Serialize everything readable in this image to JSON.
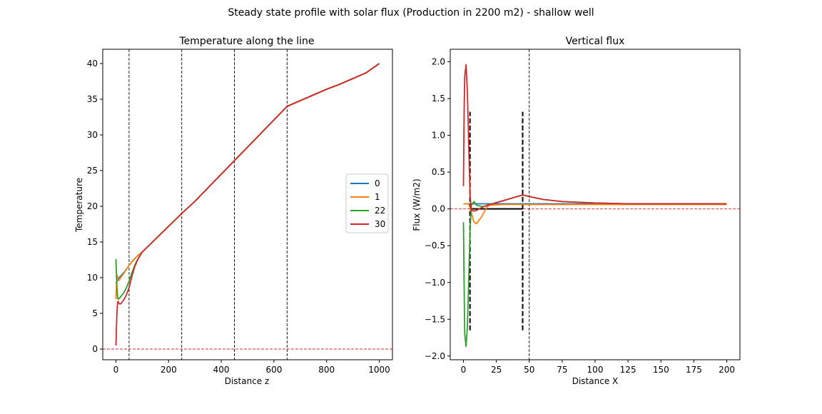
{
  "figure": {
    "suptitle": "Steady state profile with solar flux (Production in 2200 m2) - shallow well"
  },
  "chart_data": [
    {
      "type": "line",
      "title": "Temperature along the line",
      "xlabel": "Distance z",
      "ylabel": "Temperature",
      "xlim": [
        -50,
        1050
      ],
      "ylim": [
        -1.5,
        42
      ],
      "xticks": [
        0,
        200,
        400,
        600,
        800,
        1000
      ],
      "yticks": [
        0,
        5,
        10,
        15,
        20,
        25,
        30,
        35,
        40
      ],
      "grid": false,
      "legend": {
        "position": "center-right",
        "entries": [
          "0",
          "1",
          "22",
          "30"
        ]
      },
      "vlines": [
        50,
        250,
        450,
        650
      ],
      "hline": 0,
      "series": [
        {
          "name": "0",
          "color": "#1f77b4",
          "x": [
            0,
            5,
            10,
            20,
            30,
            40,
            50,
            60,
            70,
            80,
            90,
            100,
            150,
            200,
            250,
            300,
            350,
            400,
            450,
            500,
            550,
            600,
            650,
            700,
            750,
            800,
            850,
            900,
            950,
            1000
          ],
          "y": [
            9.2,
            9.6,
            9.9,
            10.3,
            10.7,
            11.2,
            11.7,
            12.2,
            12.6,
            13.0,
            13.3,
            13.6,
            15.4,
            17.2,
            19.0,
            20.7,
            22.6,
            24.5,
            26.4,
            28.3,
            30.2,
            32.1,
            34.0,
            34.8,
            35.6,
            36.4,
            37.1,
            37.9,
            38.7,
            40.0
          ]
        },
        {
          "name": "1",
          "color": "#ff7f0e",
          "x": [
            0,
            2,
            4,
            6,
            8,
            10,
            15,
            20,
            30,
            40,
            50,
            60,
            70,
            80,
            90,
            100,
            150,
            200,
            250,
            300,
            350,
            400,
            450,
            500,
            550,
            600,
            650,
            700,
            750,
            800,
            850,
            900,
            950,
            1000
          ],
          "y": [
            7.0,
            8.8,
            10.4,
            10.1,
            9.7,
            9.6,
            9.8,
            10.1,
            10.6,
            11.2,
            11.7,
            12.2,
            12.6,
            13.0,
            13.3,
            13.6,
            15.4,
            17.2,
            19.0,
            20.7,
            22.6,
            24.5,
            26.4,
            28.3,
            30.2,
            32.1,
            34.0,
            34.8,
            35.6,
            36.4,
            37.1,
            37.9,
            38.7,
            40.0
          ]
        },
        {
          "name": "22",
          "color": "#2ca02c",
          "x": [
            0,
            2,
            4,
            6,
            8,
            10,
            15,
            20,
            30,
            40,
            50,
            60,
            70,
            80,
            90,
            100,
            150,
            200,
            250,
            300,
            350,
            400,
            450,
            500,
            550,
            600,
            650,
            700,
            750,
            800,
            850,
            900,
            950,
            1000
          ],
          "y": [
            12.6,
            10.5,
            8.6,
            7.4,
            7.0,
            7.0,
            7.2,
            7.4,
            7.9,
            8.6,
            9.5,
            10.6,
            11.6,
            12.4,
            13.0,
            13.6,
            15.4,
            17.2,
            19.0,
            20.7,
            22.6,
            24.5,
            26.4,
            28.3,
            30.2,
            32.1,
            34.0,
            34.8,
            35.6,
            36.4,
            37.1,
            37.9,
            38.7,
            40.0
          ]
        },
        {
          "name": "30",
          "color": "#d62728",
          "x": [
            0,
            2,
            4,
            6,
            8,
            10,
            15,
            20,
            30,
            40,
            50,
            60,
            70,
            80,
            90,
            100,
            150,
            200,
            250,
            300,
            350,
            400,
            450,
            500,
            550,
            600,
            650,
            700,
            750,
            800,
            850,
            900,
            950,
            1000
          ],
          "y": [
            0.5,
            3.0,
            5.2,
            6.4,
            6.7,
            6.5,
            6.3,
            6.4,
            6.9,
            7.6,
            8.6,
            10.1,
            11.4,
            12.3,
            13.0,
            13.6,
            15.4,
            17.2,
            19.0,
            20.7,
            22.6,
            24.5,
            26.4,
            28.3,
            30.2,
            32.1,
            34.0,
            34.8,
            35.6,
            36.4,
            37.1,
            37.9,
            38.7,
            40.0
          ]
        }
      ]
    },
    {
      "type": "line",
      "title": "Vertical flux",
      "xlabel": "Distance X",
      "ylabel": "Flux (W/m2)",
      "xlim": [
        -10,
        210
      ],
      "ylim": [
        -2.05,
        2.17
      ],
      "xticks": [
        0,
        25,
        50,
        75,
        100,
        125,
        150,
        175,
        200
      ],
      "yticks": [
        -2.0,
        -1.5,
        -1.0,
        -0.5,
        0.0,
        0.5,
        1.0,
        1.5,
        2.0
      ],
      "grid": false,
      "vlines": [
        50
      ],
      "hline": 0,
      "well_segments": [
        {
          "x": [
            5,
            5
          ],
          "y": [
            -1.65,
            1.32
          ]
        },
        {
          "x": [
            45,
            45
          ],
          "y": [
            -1.65,
            1.32
          ]
        },
        {
          "x": [
            5,
            45
          ],
          "y": [
            0.0,
            0.0
          ]
        }
      ],
      "series": [
        {
          "name": "0",
          "color": "#1f77b4",
          "x": [
            0,
            5,
            10,
            20,
            30,
            45,
            60,
            100,
            150,
            200
          ],
          "y": [
            0.07,
            0.07,
            0.07,
            0.07,
            0.07,
            0.07,
            0.07,
            0.07,
            0.07,
            0.07
          ]
        },
        {
          "name": "1",
          "color": "#ff7f0e",
          "x": [
            0,
            4,
            6,
            8,
            10,
            14,
            18,
            20,
            30,
            45,
            60,
            100,
            150,
            200
          ],
          "y": [
            0.07,
            0.07,
            -0.05,
            -0.18,
            -0.2,
            -0.1,
            0.03,
            0.05,
            0.06,
            0.06,
            0.06,
            0.06,
            0.06,
            0.06
          ]
        },
        {
          "name": "22",
          "color": "#2ca02c",
          "x": [
            0,
            0.5,
            1,
            2,
            3,
            4,
            5,
            6,
            8,
            10,
            15,
            20,
            30,
            45,
            50,
            60,
            75,
            100,
            125,
            150,
            200
          ],
          "y": [
            -0.18,
            -1.0,
            -1.7,
            -1.87,
            -1.6,
            -1.0,
            -0.3,
            0.05,
            0.1,
            0.05,
            0.03,
            0.06,
            0.11,
            0.19,
            0.17,
            0.13,
            0.1,
            0.08,
            0.07,
            0.07,
            0.07
          ]
        },
        {
          "name": "30",
          "color": "#d62728",
          "x": [
            0,
            0.5,
            1,
            2,
            3,
            4,
            5,
            6,
            8,
            10,
            15,
            20,
            30,
            45,
            50,
            60,
            75,
            100,
            125,
            150,
            200
          ],
          "y": [
            0.31,
            1.3,
            1.8,
            1.96,
            1.6,
            0.9,
            0.2,
            -0.02,
            -0.03,
            -0.02,
            0.03,
            0.06,
            0.11,
            0.19,
            0.17,
            0.13,
            0.1,
            0.08,
            0.07,
            0.07,
            0.07
          ]
        }
      ]
    }
  ]
}
